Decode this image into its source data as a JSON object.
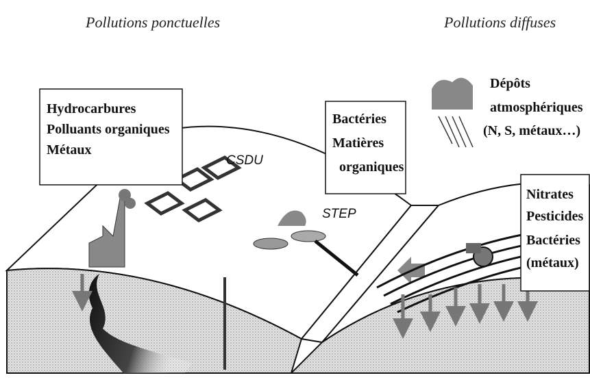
{
  "headings": {
    "point": "Pollutions ponctuelles",
    "diffuse": "Pollutions diffuses"
  },
  "boxes": [
    {
      "lines": [
        "Hydrocarbures",
        "Polluants organiques",
        "Métaux"
      ]
    },
    {
      "lines": [
        "Bactéries",
        "Matières",
        "organiques"
      ]
    },
    {
      "lines": [
        "Nitrates",
        "Pesticides",
        "Bactéries",
        "(métaux)"
      ]
    }
  ],
  "labels": {
    "landfill": "CSDU",
    "treatment": "STEP"
  },
  "deposition": {
    "lines": [
      "Dépôts",
      "atmosphériques",
      "(N, S, métaux…)"
    ]
  }
}
